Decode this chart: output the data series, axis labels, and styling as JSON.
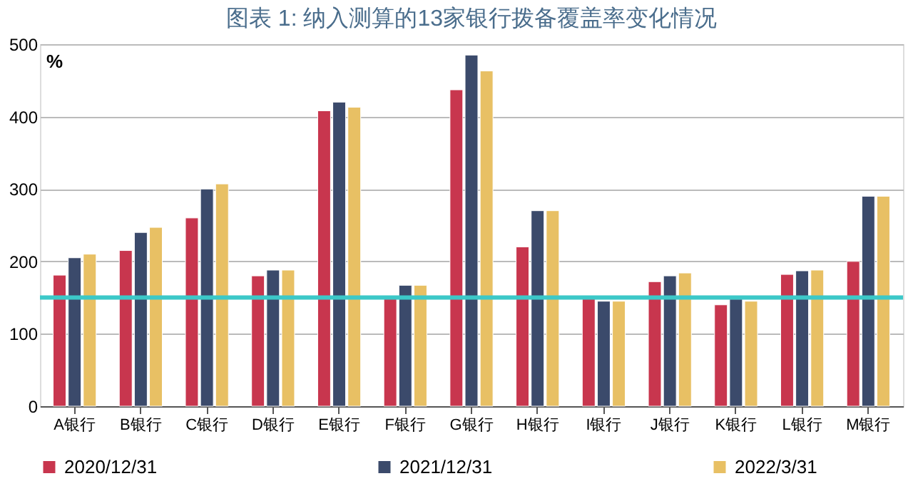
{
  "chart_data": {
    "type": "bar",
    "title": "图表 1: 纳入测算的13家银行拨备覆盖率变化情况",
    "ylabel": "%",
    "categories": [
      "A银行",
      "B银行",
      "C银行",
      "D银行",
      "E银行",
      "F银行",
      "G银行",
      "H银行",
      "I银行",
      "J银行",
      "K银行",
      "L银行",
      "M银行"
    ],
    "series": [
      {
        "name": "2020/12/31",
        "color": "#c8364e",
        "values": [
          181,
          215,
          260,
          180,
          408,
          150,
          437,
          220,
          150,
          172,
          140,
          182,
          200
        ]
      },
      {
        "name": "2021/12/31",
        "color": "#3b4a6b",
        "values": [
          205,
          240,
          300,
          188,
          420,
          167,
          485,
          270,
          145,
          180,
          148,
          187,
          290
        ]
      },
      {
        "name": "2022/3/31",
        "color": "#e8c064",
        "values": [
          210,
          247,
          307,
          188,
          413,
          167,
          463,
          270,
          145,
          184,
          145,
          188,
          290
        ]
      }
    ],
    "ylim": [
      0,
      500
    ],
    "yticks": [
      0,
      100,
      200,
      300,
      400,
      500
    ],
    "grid": "y",
    "legend": "bottom",
    "ref_lines": [
      {
        "axis": "y",
        "value": 150,
        "color": "#3cc8c8"
      }
    ]
  }
}
